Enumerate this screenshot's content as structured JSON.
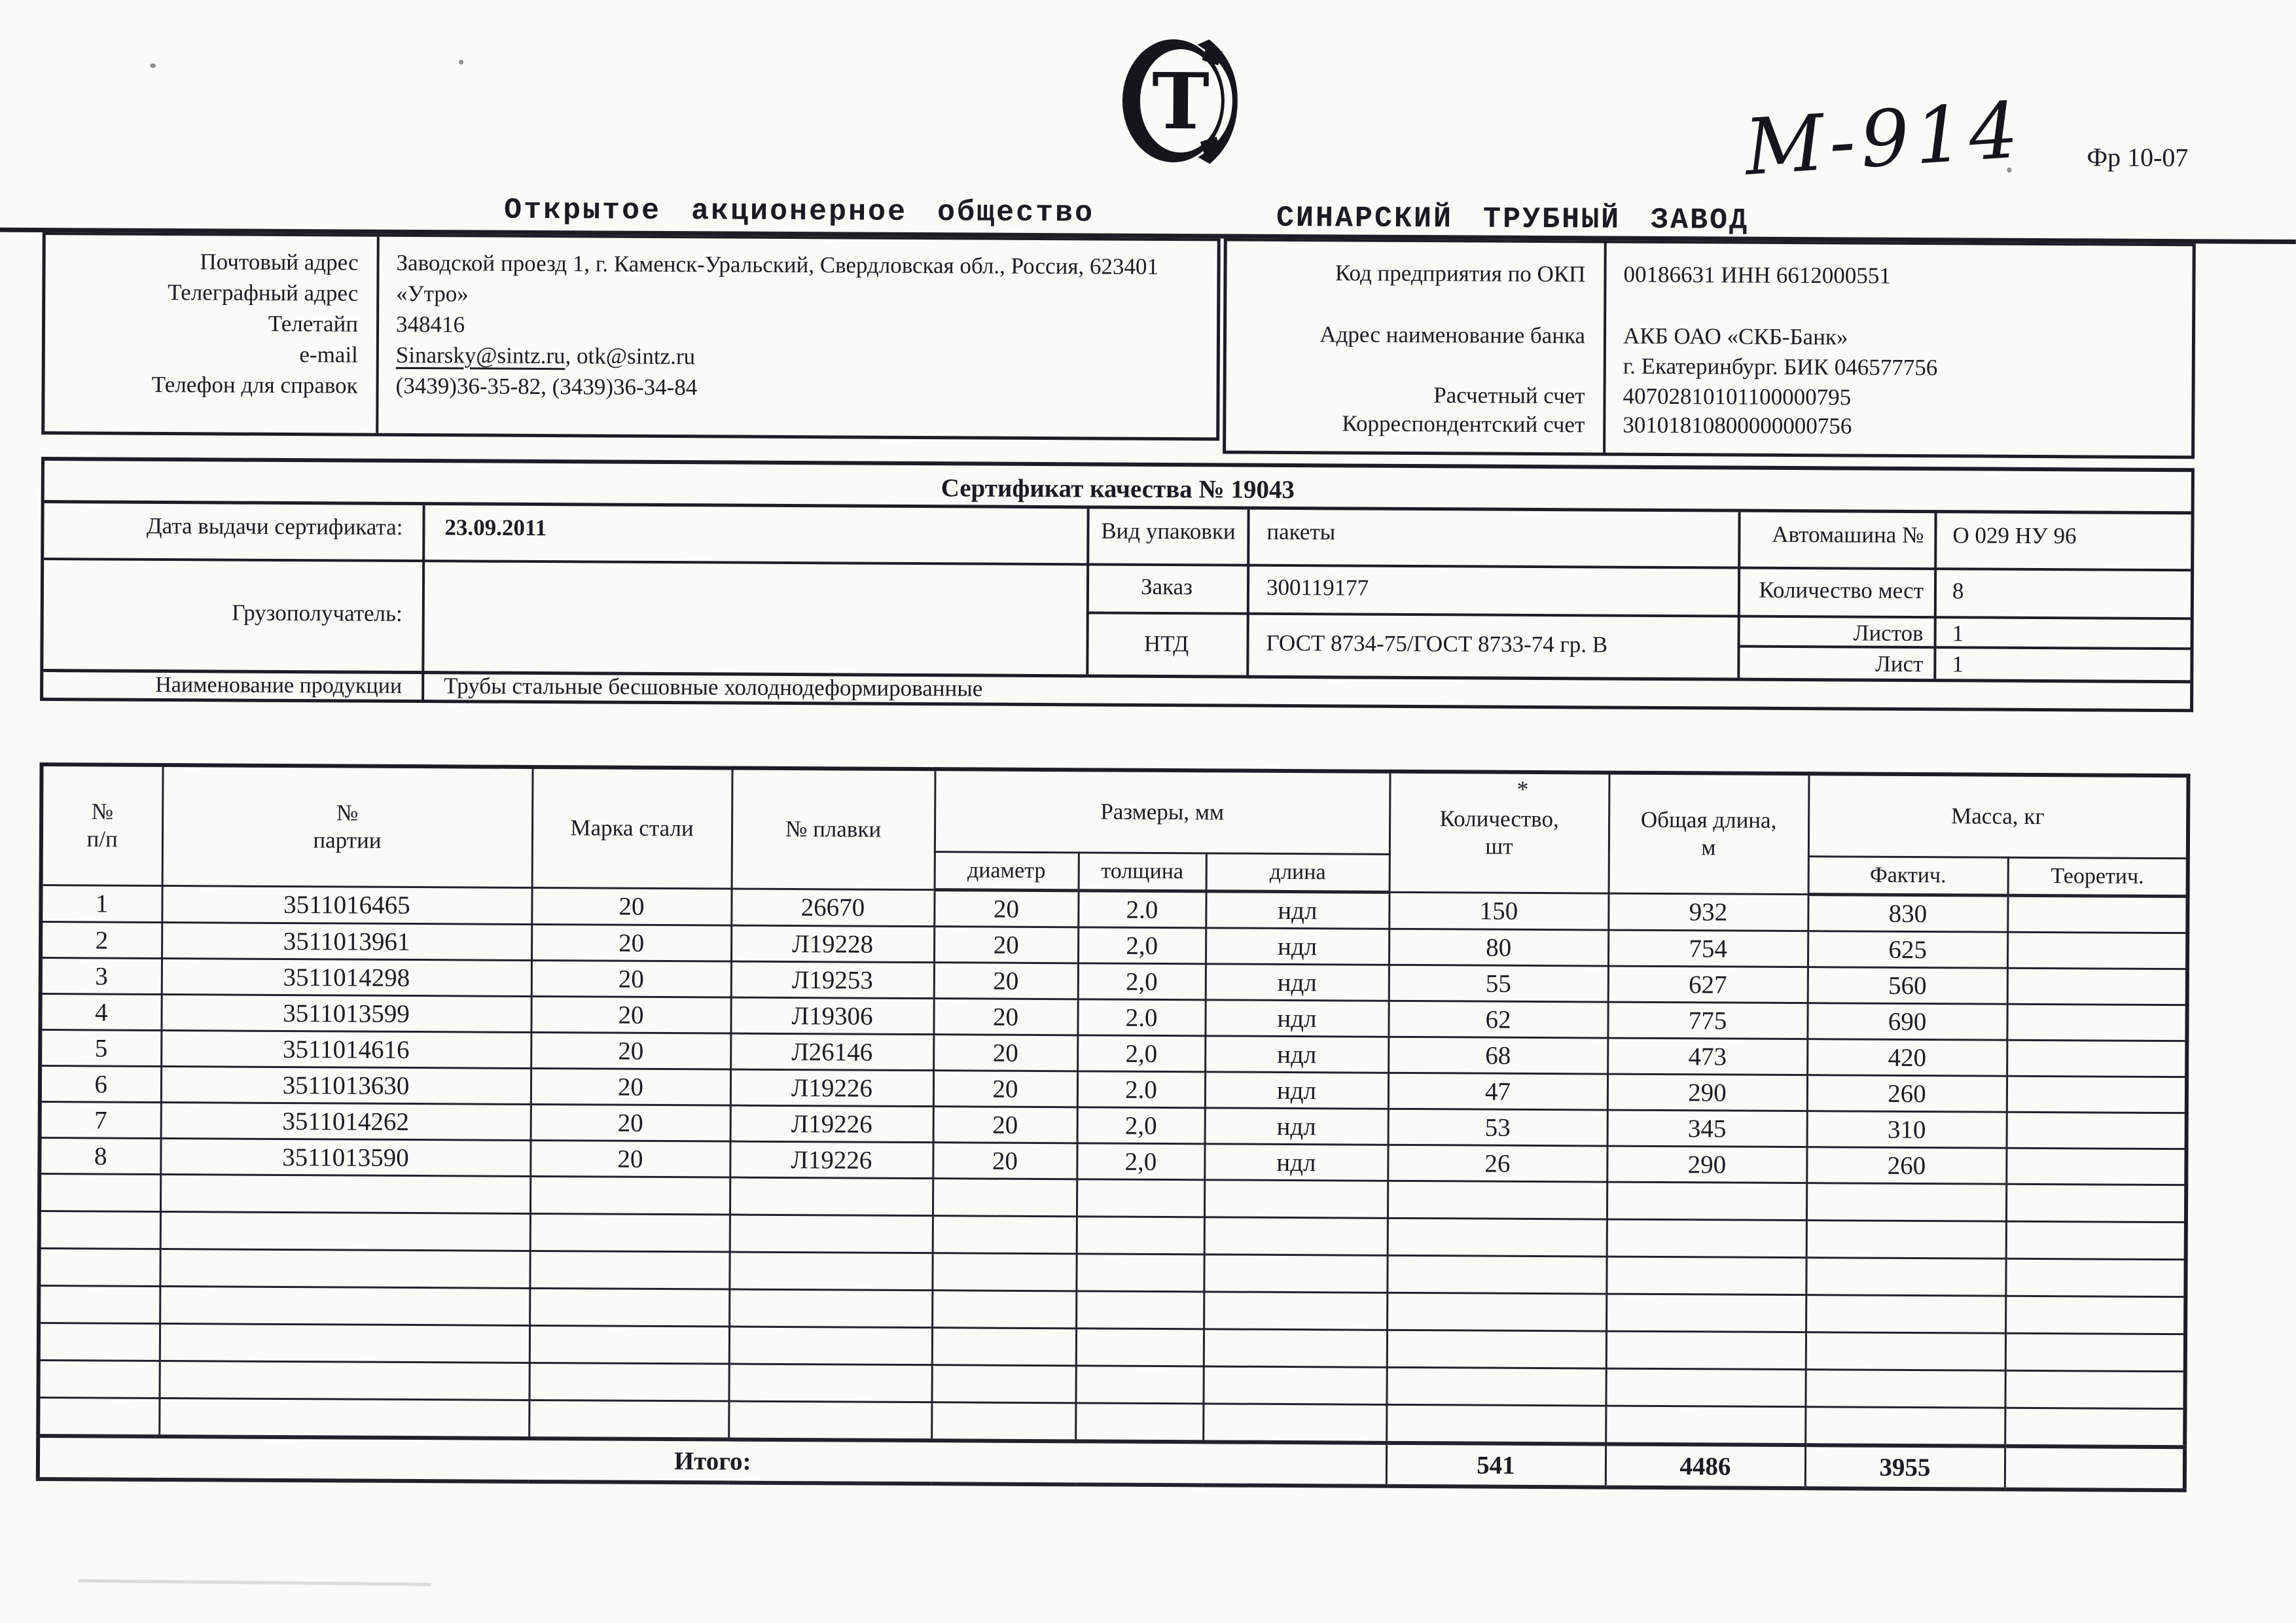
{
  "page": {
    "handwritten_mark": "М-914",
    "form_code": "Фр 10-07",
    "org_type": "Открытое акционерное общество",
    "org_name": "СИНАРСКИЙ ТРУБНЫЙ ЗАВОД",
    "logo_letter": "Т"
  },
  "contact": {
    "labels": [
      "Почтовый адрес",
      "Телеграфный адрес",
      "Телетайп",
      "e-mail",
      "Телефон для справок"
    ],
    "address": "Заводской проезд 1, г. Каменск-Уральский, Свердловская обл., Россия, 623401",
    "telegraph": "«Утро»",
    "teletype": "348416",
    "email_primary": "Sinarsky@sintz.ru",
    "email_separator": ", ",
    "email_secondary": "otk@sintz.ru",
    "phones": "(3439)36-35-82, (3439)36-34-84"
  },
  "bank": {
    "okp_label": "Код предприятия по ОКП",
    "okp_value": "00186631 ИНН 6612000551",
    "bank_label": "Адрес наименование банка",
    "bank_name": "АКБ ОАО «СКБ-Банк»",
    "bank_city_bik": "г. Екатеринбург. БИК 046577756",
    "account_label": "Расчетный счет",
    "account_value": "40702810101100000795",
    "corr_label": "Корреспондентский счет",
    "corr_value": "30101810800000000756"
  },
  "certificate": {
    "title": "Сертификат качества № 19043",
    "date_label": "Дата выдачи сертификата:",
    "date_value": "23.09.2011",
    "packaging_label": "Вид упаковки",
    "packaging_value": "пакеты",
    "truck_label": "Автомашина №",
    "truck_value": "О 029 НУ 96",
    "consignee_label": "Грузополучатель:",
    "consignee_value": "",
    "order_label": "Заказ",
    "order_value": "300119177",
    "places_label": "Количество мест",
    "places_value": "8",
    "ntd_label": "НТД",
    "ntd_value": "ГОСТ 8734-75/ГОСТ 8733-74 гр. В",
    "sheets_label": "Листов",
    "sheets_value": "1",
    "sheet_label": "Лист",
    "sheet_value": "1",
    "product_label": "Наименование продукции",
    "product_value": "Трубы  стальные бесшовные холоднодеформированные"
  },
  "table": {
    "headers": {
      "num": "№\nп/п",
      "batch": "№\nпартии",
      "steel": "Марка стали",
      "heat": "№ плавки",
      "sizes": "Размеры, мм",
      "diameter": "диаметр",
      "thickness": "толщина",
      "length": "длина",
      "qty": "Количество,\nшт",
      "qty_asterisk": "*",
      "total_length": "Общая длина,\nм",
      "mass": "Масса, кг",
      "mass_fact": "Фактич.",
      "mass_theor": "Теоретич."
    },
    "rows": [
      {
        "n": "1",
        "batch": "3511016465",
        "steel": "20",
        "heat": "26670",
        "dia": "20",
        "thick": "2.0",
        "len": "ндл",
        "qty": "150",
        "tlen": "932",
        "mfact": "830",
        "mtheor": ""
      },
      {
        "n": "2",
        "batch": "3511013961",
        "steel": "20",
        "heat": "Л19228",
        "dia": "20",
        "thick": "2,0",
        "len": "ндл",
        "qty": "80",
        "tlen": "754",
        "mfact": "625",
        "mtheor": ""
      },
      {
        "n": "3",
        "batch": "3511014298",
        "steel": "20",
        "heat": "Л19253",
        "dia": "20",
        "thick": "2,0",
        "len": "ндл",
        "qty": "55",
        "tlen": "627",
        "mfact": "560",
        "mtheor": ""
      },
      {
        "n": "4",
        "batch": "3511013599",
        "steel": "20",
        "heat": "Л19306",
        "dia": "20",
        "thick": "2.0",
        "len": "ндл",
        "qty": "62",
        "tlen": "775",
        "mfact": "690",
        "mtheor": ""
      },
      {
        "n": "5",
        "batch": "3511014616",
        "steel": "20",
        "heat": "Л26146",
        "dia": "20",
        "thick": "2,0",
        "len": "ндл",
        "qty": "68",
        "tlen": "473",
        "mfact": "420",
        "mtheor": ""
      },
      {
        "n": "6",
        "batch": "3511013630",
        "steel": "20",
        "heat": "Л19226",
        "dia": "20",
        "thick": "2.0",
        "len": "ндл",
        "qty": "47",
        "tlen": "290",
        "mfact": "260",
        "mtheor": ""
      },
      {
        "n": "7",
        "batch": "3511014262",
        "steel": "20",
        "heat": "Л19226",
        "dia": "20",
        "thick": "2,0",
        "len": "ндл",
        "qty": "53",
        "tlen": "345",
        "mfact": "310",
        "mtheor": ""
      },
      {
        "n": "8",
        "batch": "3511013590",
        "steel": "20",
        "heat": "Л19226",
        "dia": "20",
        "thick": "2,0",
        "len": "ндл",
        "qty": "26",
        "tlen": "290",
        "mfact": "260",
        "mtheor": ""
      }
    ],
    "empty_row_count": 7,
    "totals": {
      "label": "Итого:",
      "qty": "541",
      "tlen": "4486",
      "mfact": "3955",
      "mtheor": ""
    }
  }
}
